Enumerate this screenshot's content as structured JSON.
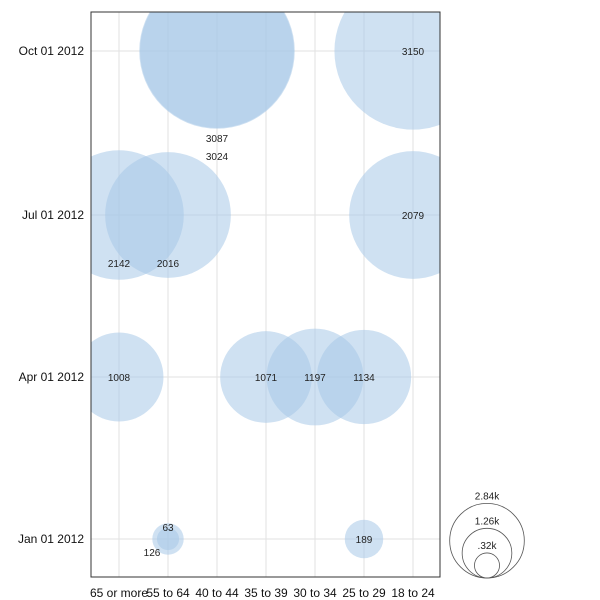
{
  "chart_data": {
    "type": "scatter",
    "x_categories": [
      "65 or more",
      "55 to 64",
      "40 to 44",
      "35 to 39",
      "30 to 34",
      "25 to 29",
      "18 to 24"
    ],
    "y_categories": [
      "Jan 01 2012",
      "Apr 01 2012",
      "Jul 01 2012",
      "Oct 01 2012"
    ],
    "points": [
      {
        "x": "40 to 44",
        "y": "Oct 01 2012",
        "value": 3087,
        "label": "3087"
      },
      {
        "x": "40 to 44",
        "y": "Oct 01 2012",
        "value": 3024,
        "label": "3024"
      },
      {
        "x": "18 to 24",
        "y": "Oct 01 2012",
        "value": 3150,
        "label": "3150"
      },
      {
        "x": "65 or more",
        "y": "Jul 01 2012",
        "value": 2142,
        "label": "2142"
      },
      {
        "x": "55 to 64",
        "y": "Jul 01 2012",
        "value": 2016,
        "label": "2016"
      },
      {
        "x": "18 to 24",
        "y": "Jul 01 2012",
        "value": 2079,
        "label": "2079"
      },
      {
        "x": "65 or more",
        "y": "Apr 01 2012",
        "value": 1008,
        "label": "1008"
      },
      {
        "x": "35 to 39",
        "y": "Apr 01 2012",
        "value": 1071,
        "label": "1071"
      },
      {
        "x": "30 to 34",
        "y": "Apr 01 2012",
        "value": 1197,
        "label": "1197"
      },
      {
        "x": "25 to 29",
        "y": "Apr 01 2012",
        "value": 1134,
        "label": "1134"
      },
      {
        "x": "55 to 64",
        "y": "Jan 01 2012",
        "value": 63,
        "label": "63"
      },
      {
        "x": "55 to 64",
        "y": "Jan 01 2012",
        "value": 126,
        "label": "126"
      },
      {
        "x": "25 to 29",
        "y": "Jan 01 2012",
        "value": 189,
        "label": "189"
      }
    ],
    "legend": {
      "type": "size",
      "entries": [
        {
          "value": 2840,
          "label": "2.84k"
        },
        {
          "value": 1260,
          "label": "1.26k"
        },
        {
          "value": 320,
          "label": ".32k"
        }
      ]
    },
    "bubble_color": "#a8c8e8",
    "grid": true,
    "title": "",
    "xlabel": "",
    "ylabel": ""
  }
}
